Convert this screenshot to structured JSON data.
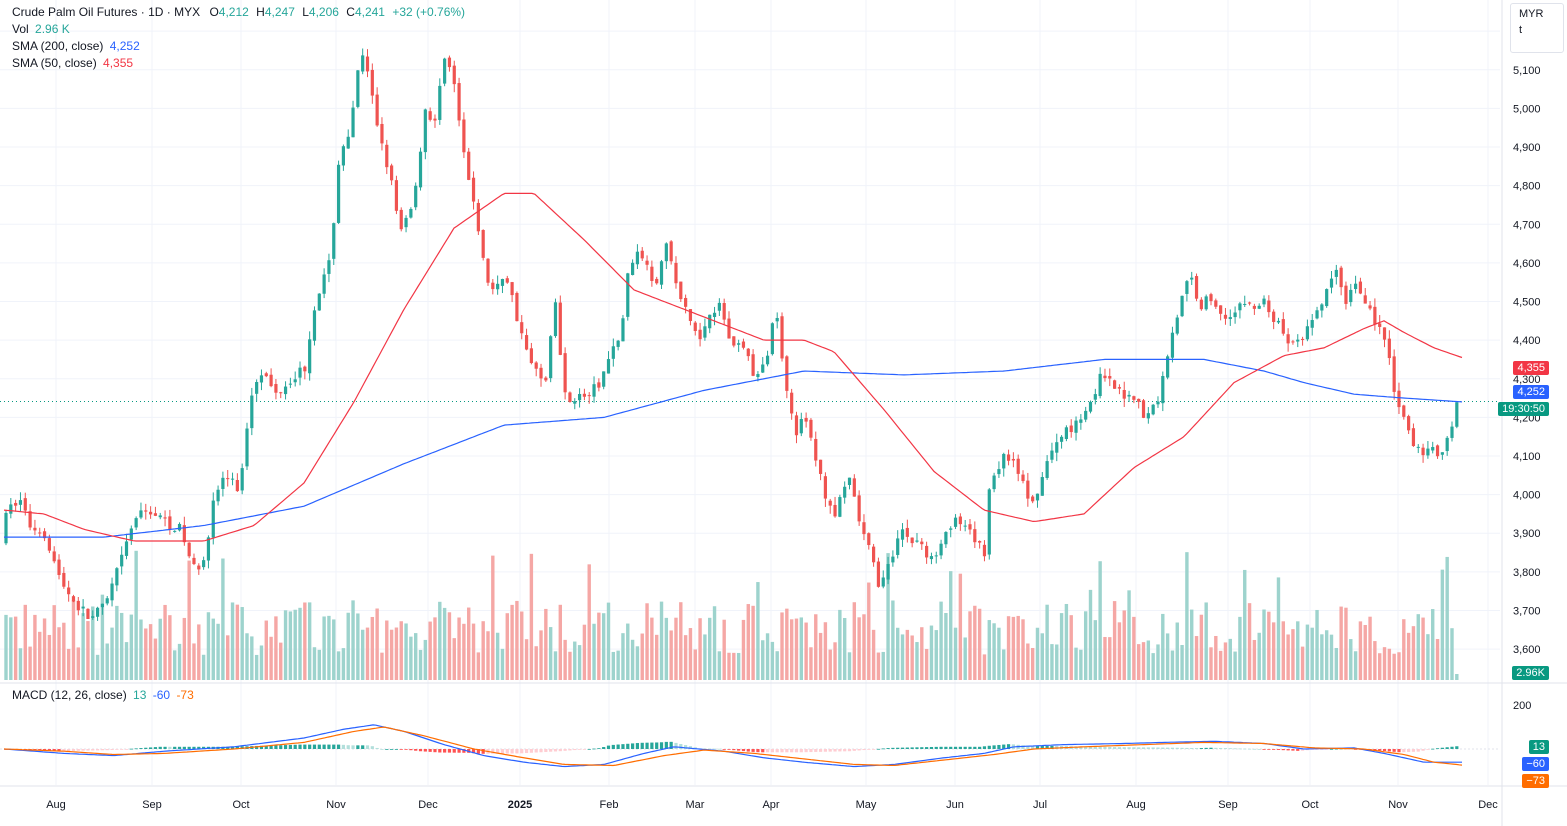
{
  "header": {
    "symbol": "Crude Palm Oil Futures",
    "interval": "1D",
    "exchange": "MYX",
    "open_label": "O",
    "open": "4,212",
    "high_label": "H",
    "high": "4,247",
    "low_label": "L",
    "low": "4,206",
    "close_label": "C",
    "close": "4,241",
    "change": "+32 (+0.76%)"
  },
  "indicators": {
    "vol_label": "Vol",
    "vol_value": "2.96 K",
    "sma200_label": "SMA (200, close)",
    "sma200_value": "4,252",
    "sma50_label": "SMA (50, close)",
    "sma50_value": "4,355",
    "macd_label": "MACD (12, 26, close)",
    "macd_hist": "13",
    "macd_line": "-60",
    "macd_signal": "-73"
  },
  "currency": {
    "code": "MYR",
    "unit": "t"
  },
  "tags": {
    "sma50": "4,355",
    "sma200": "4,252",
    "countdown": "19:30:50",
    "volume": "2.96K",
    "macd_hist": "13",
    "macd_line": "−60",
    "macd_signal": "−73"
  },
  "colors": {
    "up": "#26a69a",
    "down": "#ef5350",
    "up_vol": "#9dd3cd",
    "down_vol": "#f5a7a5",
    "sma200": "#2962ff",
    "sma50": "#f23645",
    "macd_line": "#2962ff",
    "macd_signal": "#ff6d00"
  },
  "chart_data": {
    "type": "candlestick",
    "price_axis": {
      "ylim": [
        3520,
        5260
      ],
      "ticks": [
        3600,
        3700,
        3800,
        3900,
        4000,
        4100,
        4200,
        4300,
        4400,
        4500,
        4600,
        4700,
        4800,
        4900,
        5000,
        5100,
        5200
      ],
      "tick_labels": [
        "3,600",
        "3,700",
        "3,800",
        "3,900",
        "4,000",
        "4,100",
        "4,200",
        "4,300",
        "4,400",
        "4,500",
        "4,600",
        "4,700",
        "4,800",
        "4,900",
        "5,000",
        "5,100",
        "5,200"
      ]
    },
    "macd_axis": {
      "ticks": [
        200
      ],
      "tick_labels": [
        "200"
      ]
    },
    "time_axis": {
      "labels": [
        "Aug",
        "Sep",
        "Oct",
        "Nov",
        "Dec",
        "2025",
        "Feb",
        "Mar",
        "Apr",
        "May",
        "Jun",
        "Jul",
        "Aug",
        "Sep",
        "Oct",
        "Nov",
        "Dec"
      ]
    },
    "last_close": 4241,
    "price_path": [
      [
        0,
        3880
      ],
      [
        8,
        3960
      ],
      [
        20,
        3990
      ],
      [
        30,
        3920
      ],
      [
        45,
        3900
      ],
      [
        60,
        3780
      ],
      [
        75,
        3720
      ],
      [
        90,
        3680
      ],
      [
        105,
        3710
      ],
      [
        120,
        3820
      ],
      [
        135,
        3940
      ],
      [
        150,
        3960
      ],
      [
        165,
        3930
      ],
      [
        180,
        3910
      ],
      [
        195,
        3800
      ],
      [
        205,
        3850
      ],
      [
        215,
        4000
      ],
      [
        225,
        4050
      ],
      [
        240,
        4010
      ],
      [
        250,
        4250
      ],
      [
        260,
        4330
      ],
      [
        275,
        4260
      ],
      [
        290,
        4300
      ],
      [
        305,
        4330
      ],
      [
        315,
        4500
      ],
      [
        330,
        4600
      ],
      [
        340,
        4900
      ],
      [
        350,
        4920
      ],
      [
        360,
        5150
      ],
      [
        368,
        5080
      ],
      [
        378,
        4950
      ],
      [
        390,
        4830
      ],
      [
        400,
        4670
      ],
      [
        415,
        4780
      ],
      [
        425,
        5000
      ],
      [
        435,
        4960
      ],
      [
        445,
        5150
      ],
      [
        455,
        5050
      ],
      [
        465,
        4850
      ],
      [
        475,
        4750
      ],
      [
        485,
        4570
      ],
      [
        495,
        4520
      ],
      [
        505,
        4580
      ],
      [
        515,
        4480
      ],
      [
        530,
        4340
      ],
      [
        545,
        4290
      ],
      [
        555,
        4500
      ],
      [
        565,
        4260
      ],
      [
        575,
        4250
      ],
      [
        590,
        4260
      ],
      [
        600,
        4290
      ],
      [
        610,
        4360
      ],
      [
        620,
        4400
      ],
      [
        630,
        4610
      ],
      [
        645,
        4620
      ],
      [
        655,
        4540
      ],
      [
        665,
        4660
      ],
      [
        680,
        4510
      ],
      [
        690,
        4450
      ],
      [
        700,
        4400
      ],
      [
        710,
        4480
      ],
      [
        720,
        4490
      ],
      [
        730,
        4400
      ],
      [
        745,
        4380
      ],
      [
        755,
        4300
      ],
      [
        765,
        4330
      ],
      [
        775,
        4490
      ],
      [
        785,
        4310
      ],
      [
        795,
        4160
      ],
      [
        805,
        4200
      ],
      [
        815,
        4100
      ],
      [
        825,
        4000
      ],
      [
        835,
        3950
      ],
      [
        850,
        4040
      ],
      [
        860,
        3920
      ],
      [
        870,
        3850
      ],
      [
        880,
        3760
      ],
      [
        890,
        3820
      ],
      [
        900,
        3920
      ],
      [
        910,
        3880
      ],
      [
        920,
        3880
      ],
      [
        930,
        3820
      ],
      [
        945,
        3910
      ],
      [
        955,
        3930
      ],
      [
        965,
        3910
      ],
      [
        975,
        3880
      ],
      [
        985,
        3850
      ],
      [
        990,
        4040
      ],
      [
        1005,
        4100
      ],
      [
        1015,
        4090
      ],
      [
        1025,
        4010
      ],
      [
        1035,
        3960
      ],
      [
        1045,
        4080
      ],
      [
        1055,
        4120
      ],
      [
        1065,
        4170
      ],
      [
        1075,
        4180
      ],
      [
        1090,
        4240
      ],
      [
        1100,
        4300
      ],
      [
        1110,
        4290
      ],
      [
        1120,
        4260
      ],
      [
        1135,
        4260
      ],
      [
        1145,
        4190
      ],
      [
        1160,
        4260
      ],
      [
        1170,
        4400
      ],
      [
        1180,
        4490
      ],
      [
        1190,
        4570
      ],
      [
        1200,
        4490
      ],
      [
        1210,
        4510
      ],
      [
        1220,
        4470
      ],
      [
        1235,
        4470
      ],
      [
        1245,
        4500
      ],
      [
        1255,
        4480
      ],
      [
        1265,
        4500
      ],
      [
        1275,
        4450
      ],
      [
        1285,
        4410
      ],
      [
        1295,
        4380
      ],
      [
        1305,
        4420
      ],
      [
        1315,
        4450
      ],
      [
        1325,
        4520
      ],
      [
        1335,
        4580
      ],
      [
        1345,
        4500
      ],
      [
        1355,
        4550
      ],
      [
        1365,
        4510
      ],
      [
        1375,
        4450
      ],
      [
        1385,
        4400
      ],
      [
        1395,
        4260
      ],
      [
        1405,
        4180
      ],
      [
        1415,
        4120
      ],
      [
        1425,
        4110
      ],
      [
        1435,
        4110
      ],
      [
        1445,
        4120
      ],
      [
        1452,
        4190
      ],
      [
        1458,
        4241
      ]
    ],
    "sma200_path": [
      [
        0,
        3890
      ],
      [
        100,
        3890
      ],
      [
        200,
        3920
      ],
      [
        300,
        3970
      ],
      [
        400,
        4080
      ],
      [
        500,
        4180
      ],
      [
        600,
        4200
      ],
      [
        700,
        4270
      ],
      [
        800,
        4320
      ],
      [
        900,
        4310
      ],
      [
        1000,
        4320
      ],
      [
        1100,
        4350
      ],
      [
        1200,
        4350
      ],
      [
        1260,
        4320
      ],
      [
        1300,
        4290
      ],
      [
        1350,
        4260
      ],
      [
        1400,
        4250
      ],
      [
        1458,
        4240
      ]
    ],
    "sma50_path": [
      [
        0,
        3960
      ],
      [
        40,
        3950
      ],
      [
        80,
        3910
      ],
      [
        130,
        3880
      ],
      [
        200,
        3880
      ],
      [
        250,
        3920
      ],
      [
        300,
        4030
      ],
      [
        350,
        4240
      ],
      [
        400,
        4480
      ],
      [
        450,
        4690
      ],
      [
        500,
        4780
      ],
      [
        530,
        4780
      ],
      [
        580,
        4660
      ],
      [
        630,
        4530
      ],
      [
        700,
        4460
      ],
      [
        760,
        4400
      ],
      [
        800,
        4400
      ],
      [
        830,
        4370
      ],
      [
        880,
        4220
      ],
      [
        930,
        4060
      ],
      [
        980,
        3960
      ],
      [
        1030,
        3930
      ],
      [
        1080,
        3950
      ],
      [
        1130,
        4070
      ],
      [
        1180,
        4150
      ],
      [
        1230,
        4290
      ],
      [
        1280,
        4360
      ],
      [
        1320,
        4380
      ],
      [
        1360,
        4430
      ],
      [
        1380,
        4450
      ],
      [
        1400,
        4420
      ],
      [
        1430,
        4380
      ],
      [
        1458,
        4355
      ]
    ],
    "macd_path": [
      [
        0,
        0
      ],
      [
        60,
        -20
      ],
      [
        110,
        -30
      ],
      [
        160,
        -10
      ],
      [
        230,
        10
      ],
      [
        300,
        50
      ],
      [
        340,
        90
      ],
      [
        370,
        110
      ],
      [
        400,
        80
      ],
      [
        440,
        20
      ],
      [
        480,
        -30
      ],
      [
        520,
        -60
      ],
      [
        560,
        -80
      ],
      [
        600,
        -70
      ],
      [
        640,
        -20
      ],
      [
        670,
        10
      ],
      [
        720,
        -10
      ],
      [
        760,
        -40
      ],
      [
        800,
        -60
      ],
      [
        850,
        -80
      ],
      [
        890,
        -70
      ],
      [
        940,
        -40
      ],
      [
        980,
        -20
      ],
      [
        1010,
        10
      ],
      [
        1060,
        20
      ],
      [
        1120,
        25
      ],
      [
        1160,
        30
      ],
      [
        1210,
        35
      ],
      [
        1260,
        25
      ],
      [
        1300,
        0
      ],
      [
        1350,
        5
      ],
      [
        1380,
        -20
      ],
      [
        1420,
        -60
      ],
      [
        1458,
        -60
      ]
    ],
    "signal_path": [
      [
        0,
        0
      ],
      [
        60,
        -10
      ],
      [
        110,
        -25
      ],
      [
        160,
        -20
      ],
      [
        230,
        0
      ],
      [
        300,
        30
      ],
      [
        350,
        80
      ],
      [
        380,
        100
      ],
      [
        420,
        60
      ],
      [
        470,
        0
      ],
      [
        520,
        -40
      ],
      [
        560,
        -70
      ],
      [
        610,
        -75
      ],
      [
        660,
        -30
      ],
      [
        700,
        -5
      ],
      [
        750,
        -20
      ],
      [
        800,
        -45
      ],
      [
        850,
        -70
      ],
      [
        890,
        -75
      ],
      [
        940,
        -50
      ],
      [
        990,
        -25
      ],
      [
        1030,
        0
      ],
      [
        1080,
        10
      ],
      [
        1140,
        20
      ],
      [
        1200,
        30
      ],
      [
        1260,
        25
      ],
      [
        1310,
        5
      ],
      [
        1360,
        0
      ],
      [
        1400,
        -25
      ],
      [
        1430,
        -60
      ],
      [
        1458,
        -73
      ]
    ]
  }
}
